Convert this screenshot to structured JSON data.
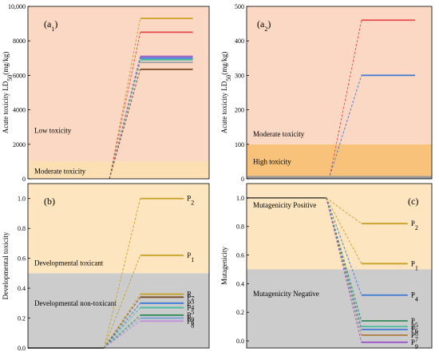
{
  "chart_data": [
    {
      "id": "a1",
      "type": "line",
      "panel_label": "(a",
      "panel_sub": "1",
      "panel_close": ")",
      "ylabel": "Acute toxicity LD",
      "ylabel_sub": "50",
      "ylabel_unit": "(mg/kg)",
      "ylim": [
        0,
        10000
      ],
      "yticks": [
        0,
        2000,
        4000,
        6000,
        8000,
        10000
      ],
      "ytick_labels": [
        "0",
        "2000",
        "4000",
        "6000",
        "8000",
        "10,000"
      ],
      "xlim": [
        0,
        10
      ],
      "regions": [
        {
          "from": 1000,
          "to": 10000,
          "color": "#fbd8c4",
          "label": "Low toxicity",
          "label_y": 2800
        },
        {
          "from": 0,
          "to": 1000,
          "color": "#fce0b4",
          "label": "Moderate toxicity",
          "label_y": 450
        }
      ],
      "start": {
        "x": 4.5,
        "y": 0
      },
      "level_x": [
        6.2,
        9.1
      ],
      "series": [
        {
          "y": 9300,
          "color": "#c8a024"
        },
        {
          "y": 8500,
          "color": "#e64a4a"
        },
        {
          "y": 7100,
          "color": "#9a55c8"
        },
        {
          "y": 7000,
          "color": "#3c78d8"
        },
        {
          "y": 6900,
          "color": "#49bda0"
        },
        {
          "y": 6750,
          "color": "#a0a0a0"
        },
        {
          "y": 6350,
          "color": "#7a4a22"
        }
      ]
    },
    {
      "id": "a2",
      "type": "line",
      "panel_label": "(a",
      "panel_sub": "2",
      "panel_close": ")",
      "ylabel": "Acute toxicity LD",
      "ylabel_sub": "50",
      "ylabel_unit": "(mg/kg)",
      "ylim": [
        0,
        500
      ],
      "yticks": [
        0,
        100,
        200,
        300,
        400,
        500
      ],
      "ytick_labels": [
        "0",
        "100",
        "200",
        "300",
        "400",
        "500"
      ],
      "xlim": [
        0,
        10
      ],
      "regions": [
        {
          "from": 100,
          "to": 500,
          "color": "#fbd8c4",
          "label": "Moderate toxicity",
          "label_y": 130
        },
        {
          "from": 0,
          "to": 100,
          "color": "#f8c27a",
          "label": "High toxicity",
          "label_y": 50
        },
        {
          "from": 0,
          "to": 8,
          "color": "#999999",
          "label": "",
          "label_y": 0
        }
      ],
      "start": {
        "x": 4.5,
        "y": 10
      },
      "level_x": [
        6.2,
        9.1
      ],
      "series": [
        {
          "y": 460,
          "color": "#e64a4a"
        },
        {
          "y": 300,
          "color": "#3c78d8"
        }
      ]
    },
    {
      "id": "b",
      "type": "line",
      "panel_label": "(b)",
      "panel_sub": "",
      "panel_close": "",
      "ylabel": "Developmental toxicity",
      "ylabel_sub": "",
      "ylabel_unit": "",
      "ylim": [
        0,
        1.1
      ],
      "yticks": [
        0,
        0.2,
        0.4,
        0.6,
        0.8,
        1.0
      ],
      "ytick_labels": [
        "0.0",
        "0.2",
        "0.4",
        "0.6",
        "0.8",
        "1.0"
      ],
      "xlim": [
        0,
        10
      ],
      "regions": [
        {
          "from": 0.5,
          "to": 1.1,
          "color": "#fde5bf",
          "label": "Developmental toxicant",
          "label_y": 0.57
        },
        {
          "from": 0,
          "to": 0.5,
          "color": "#cccccc",
          "label": "Developmental non-toxicant",
          "label_y": 0.3
        }
      ],
      "baseline": {
        "x0": 0,
        "x1": 4.2,
        "y": 0
      },
      "start": {
        "x": 4.2,
        "y": 0
      },
      "level_x": [
        6.2,
        8.6
      ],
      "series": [
        {
          "y": 1.0,
          "color": "#c8a024",
          "label": "P",
          "sub": "2"
        },
        {
          "y": 0.62,
          "color": "#c8a024",
          "label": "P",
          "sub": "1"
        },
        {
          "y": 0.36,
          "color": "#c8a024",
          "label": "P",
          "sub": "7"
        },
        {
          "y": 0.34,
          "color": "#7a4a22",
          "label": "P",
          "sub": "3"
        },
        {
          "y": 0.3,
          "color": "#3c78d8",
          "label": "P",
          "sub": "4"
        },
        {
          "y": 0.27,
          "color": "#49bda0",
          "label": "P",
          "sub": "5"
        },
        {
          "y": 0.22,
          "color": "#2e8b57",
          "label": "P",
          "sub": "9"
        },
        {
          "y": 0.2,
          "color": "#7aa0d8",
          "label": "P",
          "sub": "6"
        },
        {
          "y": 0.18,
          "color": "#c090d8",
          "label": "P",
          "sub": "8"
        }
      ]
    },
    {
      "id": "c",
      "type": "line",
      "panel_label": "(c)",
      "panel_sub": "",
      "panel_close": "",
      "ylabel": "Mutagenicity",
      "ylabel_sub": "",
      "ylabel_unit": "",
      "ylim": [
        -0.05,
        1.1
      ],
      "yticks": [
        0,
        0.2,
        0.4,
        0.6,
        0.8,
        1.0
      ],
      "ytick_labels": [
        "0.0",
        "0.2",
        "0.4",
        "0.6",
        "0.8",
        "1.0"
      ],
      "xlim": [
        0,
        10
      ],
      "regions": [
        {
          "from": 0.5,
          "to": 1.1,
          "color": "#fde5bf",
          "label": "Mutagenicity Positive",
          "label_y": 0.95
        },
        {
          "from": -0.05,
          "to": 0.5,
          "color": "#cccccc",
          "label": "Mutagenicity Negative",
          "label_y": 0.33
        }
      ],
      "baseline": {
        "x0": 0,
        "x1": 4.3,
        "y": 1.0
      },
      "start": {
        "x": 4.3,
        "y": 1.0
      },
      "level_x": [
        6.2,
        8.7
      ],
      "series": [
        {
          "y": 0.82,
          "color": "#c8a024",
          "label": "P",
          "sub": "2"
        },
        {
          "y": 0.54,
          "color": "#c8a024",
          "label": "P",
          "sub": "1"
        },
        {
          "y": 0.32,
          "color": "#3c78d8",
          "label": "P",
          "sub": "4"
        },
        {
          "y": 0.14,
          "color": "#2e8b57",
          "label": "P",
          "sub": "5"
        },
        {
          "y": 0.1,
          "color": "#49bda0",
          "label": "P",
          "sub": "6"
        },
        {
          "y": 0.08,
          "color": "#3c78d8",
          "label": "P",
          "sub": "8"
        },
        {
          "y": 0.04,
          "color": "#b07a3a",
          "label": "P",
          "sub": "7"
        },
        {
          "y": -0.01,
          "color": "#9a55c8",
          "label": "P",
          "sub": "9"
        }
      ]
    }
  ]
}
